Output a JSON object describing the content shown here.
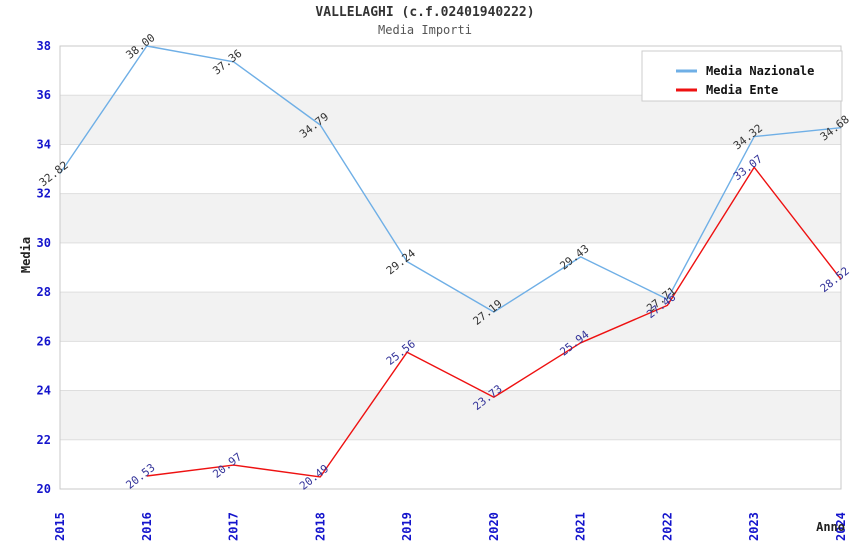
{
  "header": {
    "title": "VALLELAGHI (c.f.02401940222)",
    "subtitle": "Media Importi"
  },
  "axes": {
    "x_title": "Anno",
    "y_title": "Media",
    "y_ticks": [
      20,
      22,
      24,
      26,
      28,
      30,
      32,
      34,
      36,
      38
    ],
    "x_tick_labels": [
      "2015",
      "2016",
      "2017",
      "2018",
      "2019",
      "2020",
      "2021",
      "2022",
      "2023",
      "2024"
    ],
    "tick_label_color": "#1414cc"
  },
  "legend": {
    "position": "top-right",
    "items": [
      {
        "label": "Media Nazionale",
        "color": "#6fafe6"
      },
      {
        "label": "Media Ente",
        "color": "#ee1111"
      }
    ]
  },
  "colors": {
    "band_fill": "#f2f2f2",
    "gridline": "#dedede",
    "plot_border": "#c9c9c9",
    "background": "#ffffff"
  },
  "chart_data": {
    "type": "line",
    "title": "VALLELAGHI (c.f.02401940222)",
    "subtitle": "Media Importi",
    "xlabel": "Anno",
    "ylabel": "Media",
    "x": [
      2015,
      2016,
      2017,
      2018,
      2019,
      2020,
      2021,
      2022,
      2023,
      2024
    ],
    "series": [
      {
        "name": "Media Nazionale",
        "color": "#6fafe6",
        "label_color": "#333333",
        "values": [
          32.82,
          38.0,
          37.36,
          34.79,
          29.24,
          27.19,
          29.43,
          27.71,
          34.32,
          34.68
        ]
      },
      {
        "name": "Media Ente",
        "color": "#ee1111",
        "label_color": "#333399",
        "values": [
          null,
          20.53,
          20.97,
          20.49,
          25.56,
          23.73,
          25.94,
          27.46,
          33.07,
          28.52
        ]
      }
    ],
    "ylim": [
      20,
      38
    ],
    "y_tick_step": 2,
    "grid": "horizontal-only",
    "band_shading": "alternating-gray",
    "point_labels": "two-decimals-rotated",
    "legend_position": "top-right"
  }
}
